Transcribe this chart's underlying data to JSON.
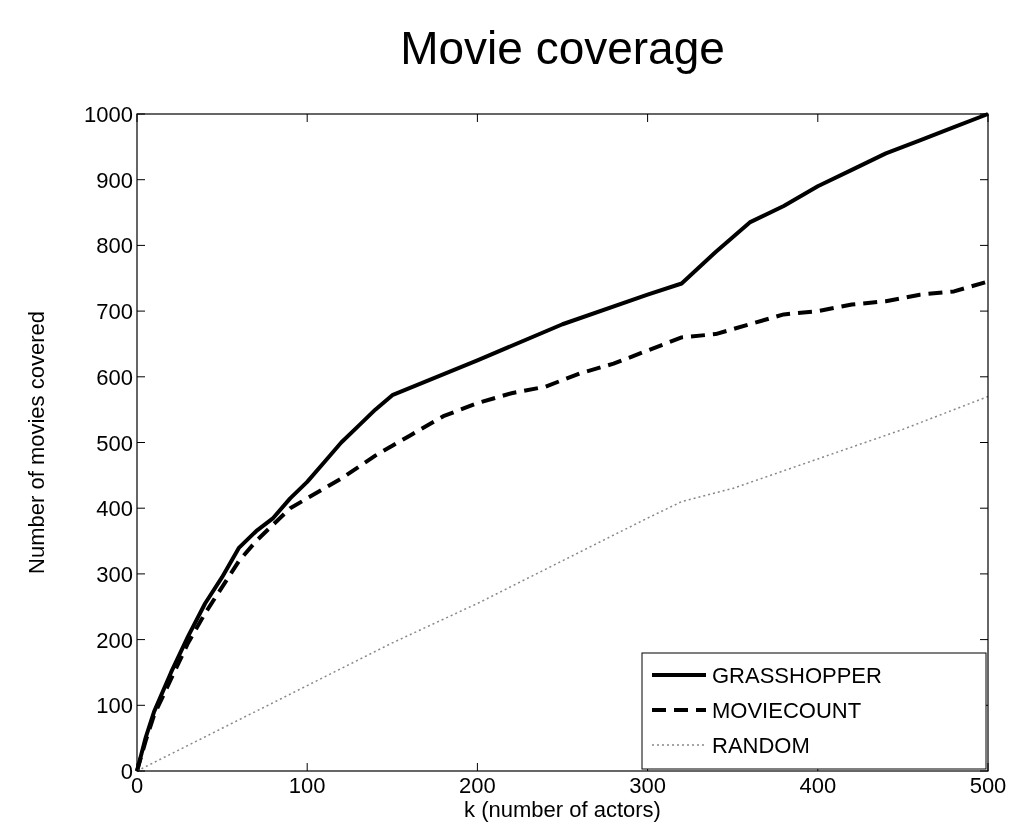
{
  "chart_data": {
    "type": "line",
    "title": "Movie coverage",
    "xlabel": "k (number of actors)",
    "ylabel": "Number of movies covered",
    "xlim": [
      0,
      500
    ],
    "xticks": [
      0,
      100,
      200,
      300,
      400,
      500
    ],
    "ylim": [
      0,
      1000
    ],
    "yticks": [
      0,
      100,
      200,
      300,
      400,
      500,
      600,
      700,
      800,
      900,
      1000
    ],
    "grid": false,
    "legend": "bottom right",
    "series": [
      {
        "name": "GRASSHOPPER",
        "color": "#000000",
        "line_style": "solid",
        "x": [
          0,
          5,
          10,
          20,
          30,
          40,
          50,
          60,
          70,
          80,
          90,
          100,
          110,
          120,
          130,
          140,
          150,
          200,
          250,
          300,
          320,
          340,
          360,
          380,
          400,
          420,
          440,
          460,
          480,
          500
        ],
        "values": [
          0,
          50,
          90,
          150,
          205,
          255,
          295,
          340,
          365,
          385,
          415,
          440,
          470,
          500,
          525,
          550,
          572,
          625,
          680,
          725,
          742,
          790,
          835,
          860,
          890,
          915,
          940,
          960,
          980,
          1000
        ]
      },
      {
        "name": "MOVIECOUNT",
        "color": "#000000",
        "line_style": "dashed",
        "x": [
          0,
          5,
          10,
          20,
          30,
          40,
          50,
          60,
          70,
          80,
          90,
          100,
          120,
          140,
          150,
          160,
          180,
          200,
          220,
          240,
          260,
          280,
          300,
          320,
          340,
          360,
          380,
          400,
          420,
          440,
          460,
          480,
          500
        ],
        "values": [
          0,
          45,
          85,
          140,
          195,
          240,
          280,
          320,
          350,
          375,
          400,
          415,
          445,
          480,
          495,
          510,
          540,
          560,
          575,
          585,
          605,
          620,
          640,
          660,
          665,
          680,
          695,
          700,
          710,
          715,
          725,
          730,
          745
        ]
      },
      {
        "name": "RANDOM",
        "color": "#888888",
        "line_style": "dotted",
        "x": [
          0,
          50,
          100,
          150,
          200,
          250,
          300,
          320,
          350,
          400,
          450,
          500
        ],
        "values": [
          0,
          65,
          130,
          195,
          255,
          320,
          385,
          410,
          430,
          475,
          520,
          570
        ]
      }
    ]
  }
}
